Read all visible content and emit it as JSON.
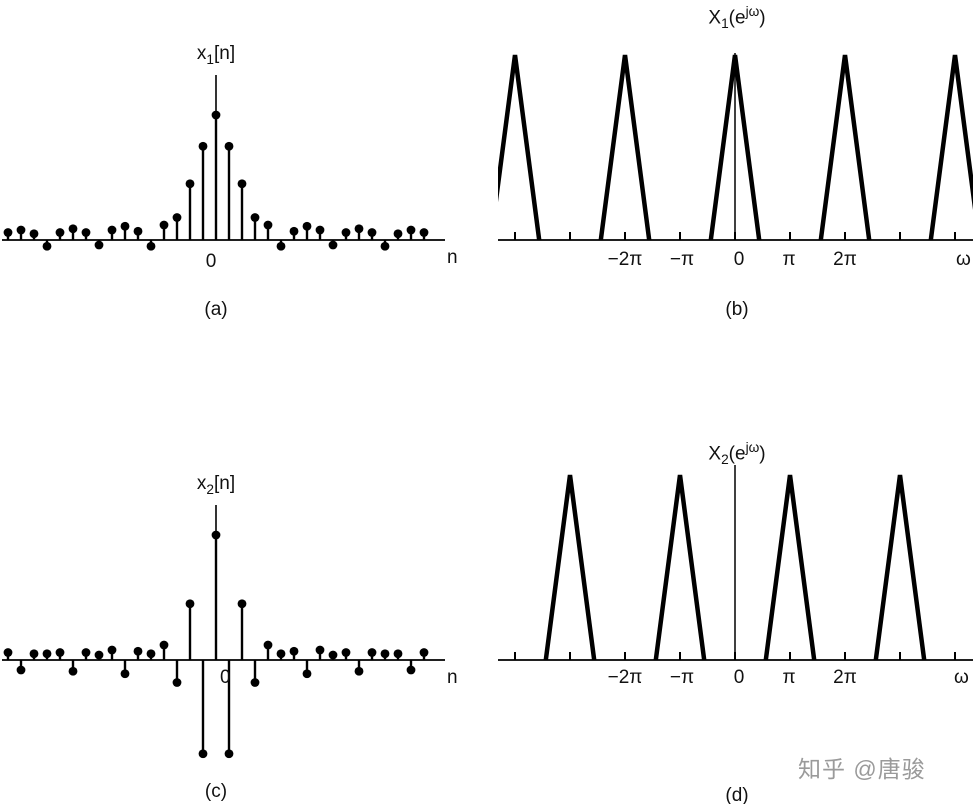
{
  "colors": {
    "ink": "#000000",
    "background": "#ffffff",
    "watermark_gray": "#9a9a9a"
  },
  "watermark": "知乎 @唐骏",
  "chart_data": [
    {
      "id": "a",
      "type": "stem",
      "title": {
        "base": "x",
        "sub": "1",
        "post": "[n]"
      },
      "xlabel": "n",
      "origin_label": "0",
      "caption": "(a)",
      "n_start": -16,
      "values": [
        0.06,
        0.08,
        0.05,
        -0.05,
        0.06,
        0.09,
        0.06,
        -0.04,
        0.08,
        0.11,
        0.07,
        -0.05,
        0.12,
        0.18,
        0.45,
        0.75,
        1.0,
        0.75,
        0.45,
        0.18,
        0.12,
        -0.05,
        0.07,
        0.11,
        0.08,
        -0.04,
        0.06,
        0.09,
        0.06,
        -0.05,
        0.05,
        0.08,
        0.06
      ],
      "ylim": [
        -0.2,
        1.1
      ]
    },
    {
      "id": "b",
      "type": "line",
      "title": {
        "base": "X",
        "sub": "1",
        "pre_sup": "(e",
        "sup": "jω",
        "post": ")"
      },
      "xlabel": "ω",
      "caption": "(b)",
      "peaks_at_pi": [
        -4,
        -2,
        0,
        2,
        4
      ],
      "peak_half_width_pi": 0.44,
      "peak_height": 1,
      "x_ticks_pi": [
        -4,
        -3,
        -2,
        -1,
        0,
        1,
        2,
        3,
        4
      ],
      "tick_labels": [
        "−2π",
        "−π",
        "0",
        "π",
        "2π"
      ],
      "tick_label_positions_pi": [
        -2,
        -1,
        0,
        1,
        2
      ],
      "xlim_pi": [
        -4.5,
        4.5
      ]
    },
    {
      "id": "c",
      "type": "stem",
      "title": {
        "base": "x",
        "sub": "2",
        "post": "[n]"
      },
      "xlabel": "n",
      "origin_label": "0",
      "caption": "(c)",
      "n_start": -16,
      "values": [
        0.06,
        -0.08,
        0.05,
        0.05,
        0.06,
        -0.09,
        0.06,
        0.04,
        0.08,
        -0.11,
        0.07,
        0.05,
        0.12,
        -0.18,
        0.45,
        -0.75,
        1.0,
        -0.75,
        0.45,
        -0.18,
        0.12,
        0.05,
        0.07,
        -0.11,
        0.08,
        0.04,
        0.06,
        -0.09,
        0.06,
        0.05,
        0.05,
        -0.08,
        0.06
      ],
      "ylim": [
        -0.9,
        1.1
      ]
    },
    {
      "id": "d",
      "type": "line",
      "title": {
        "base": "X",
        "sub": "2",
        "pre_sup": "(e",
        "sup": "jω",
        "post": ")"
      },
      "xlabel": "ω",
      "caption": "(d)",
      "peaks_at_pi": [
        -3,
        -1,
        1,
        3
      ],
      "peak_half_width_pi": 0.44,
      "peak_height": 1,
      "x_ticks_pi": [
        -4,
        -3,
        -2,
        -1,
        0,
        1,
        2,
        3,
        4
      ],
      "tick_labels": [
        "−2π",
        "−π",
        "0",
        "π",
        "2π"
      ],
      "tick_label_positions_pi": [
        -2,
        -1,
        0,
        1,
        2
      ],
      "xlim_pi": [
        -4.5,
        4.5
      ]
    }
  ]
}
